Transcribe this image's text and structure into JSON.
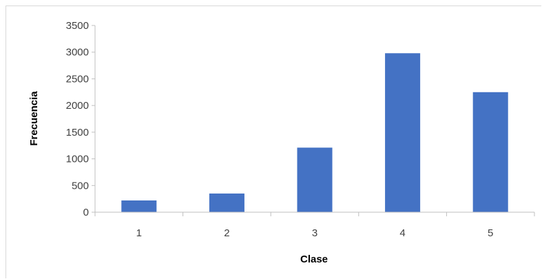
{
  "chart_data": {
    "type": "bar",
    "categories": [
      "1",
      "2",
      "3",
      "4",
      "5"
    ],
    "values": [
      220,
      350,
      1210,
      2980,
      2250
    ],
    "xlabel": "Clase",
    "ylabel": "Frecuencia",
    "ylim": [
      0,
      3500
    ],
    "yticks": [
      "0",
      "500",
      "1000",
      "1500",
      "2000",
      "2500",
      "3000",
      "3500"
    ],
    "grid": false,
    "legend": "none",
    "bar_color": "#4472c4",
    "axis_color": "#bfbfbf"
  }
}
